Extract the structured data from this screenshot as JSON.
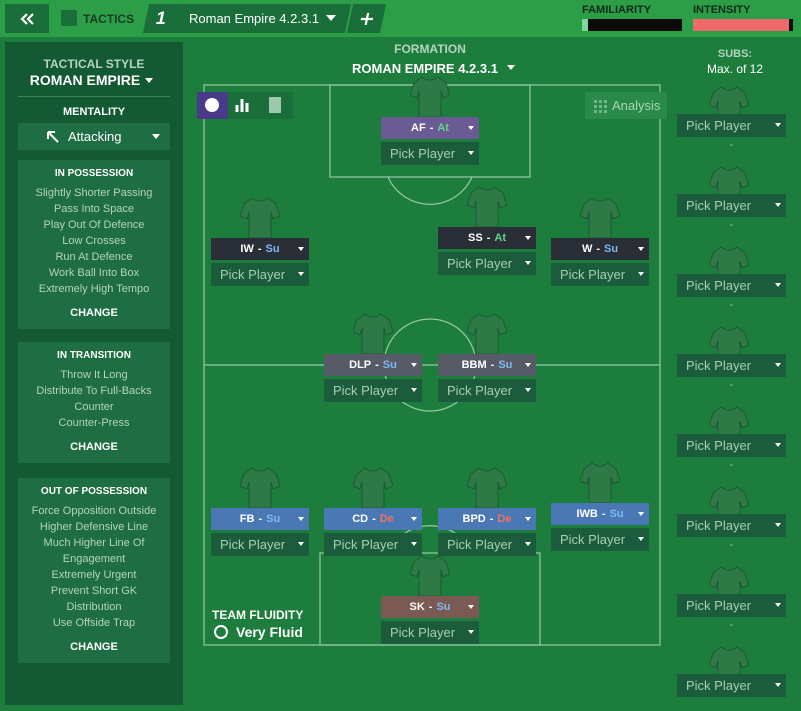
{
  "top_bar": {
    "tab": "TACTICS",
    "slot": "1",
    "tactic_name": "Roman Empire 4.2.3.1",
    "familiarity_label": "FAMILIARITY",
    "intensity_label": "INTENSITY",
    "familiarity": 6,
    "intensity": 96
  },
  "left_panel": {
    "style_label": "TACTICAL STYLE",
    "style": "ROMAN EMPIRE",
    "mentality_label": "MENTALITY",
    "mentality": "Attacking",
    "sections": [
      {
        "title": "IN POSSESSION",
        "items": [
          "Slightly Shorter Passing",
          "Pass Into Space",
          "Play Out Of Defence",
          "Low Crosses",
          "Run At Defence",
          "Work Ball Into Box",
          "Extremely High Tempo"
        ],
        "action": "CHANGE"
      },
      {
        "title": "IN TRANSITION",
        "items": [
          "Throw It Long",
          "Distribute To Full-Backs",
          "Counter",
          "Counter-Press"
        ],
        "action": "CHANGE"
      },
      {
        "title": "OUT OF POSSESSION",
        "items": [
          "Force Opposition Outside",
          "Higher Defensive Line",
          "Much Higher Line Of Engagement",
          "Extremely Urgent",
          "Prevent Short GK Distribution",
          "Use Offside Trap"
        ],
        "action": "CHANGE"
      }
    ]
  },
  "formation": {
    "label": "FORMATION",
    "name": "ROMAN EMPIRE 4.2.3.1",
    "analysis": "Analysis",
    "role_separator": "-",
    "positions": [
      {
        "role": "AF",
        "duty": "At",
        "player": "Pick Player",
        "color": "#6b5b95"
      },
      {
        "role": "IW",
        "duty": "Su",
        "player": "Pick Player",
        "color": "#2a2e36"
      },
      {
        "role": "SS",
        "duty": "At",
        "player": "Pick Player",
        "color": "#2a2e36"
      },
      {
        "role": "W",
        "duty": "Su",
        "player": "Pick Player",
        "color": "#2a2e36"
      },
      {
        "role": "DLP",
        "duty": "Su",
        "player": "Pick Player",
        "color": "#575b68"
      },
      {
        "role": "BBM",
        "duty": "Su",
        "player": "Pick Player",
        "color": "#575b68"
      },
      {
        "role": "FB",
        "duty": "Su",
        "player": "Pick Player",
        "color": "#4a78b5"
      },
      {
        "role": "CD",
        "duty": "De",
        "player": "Pick Player",
        "color": "#4a78b5"
      },
      {
        "role": "BPD",
        "duty": "De",
        "player": "Pick Player",
        "color": "#4a78b5"
      },
      {
        "role": "IWB",
        "duty": "Su",
        "player": "Pick Player",
        "color": "#4a78b5"
      },
      {
        "role": "SK",
        "duty": "Su",
        "player": "Pick Player",
        "color": "#7a5a52"
      }
    ],
    "fluidity_label": "TEAM FLUIDITY",
    "fluidity": "Very Fluid"
  },
  "subs": {
    "label": "SUBS:",
    "limit": "Max. of 12",
    "slots": [
      {
        "player": "Pick Player",
        "note": "-"
      },
      {
        "player": "Pick Player",
        "note": "-"
      },
      {
        "player": "Pick Player",
        "note": "-"
      },
      {
        "player": "Pick Player",
        "note": "-"
      },
      {
        "player": "Pick Player",
        "note": "-"
      },
      {
        "player": "Pick Player",
        "note": "-"
      },
      {
        "player": "Pick Player",
        "note": "-"
      },
      {
        "player": "Pick Player"
      }
    ]
  }
}
